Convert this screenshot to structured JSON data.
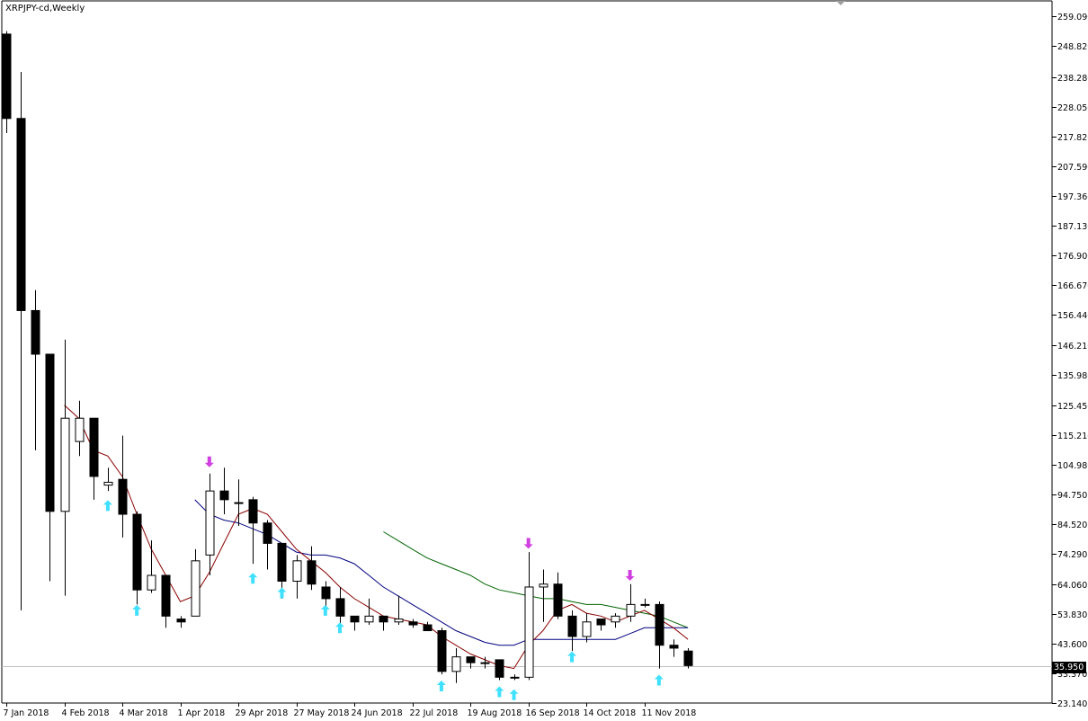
{
  "header": {
    "symbol_label": "XRPJPY-cd,Weekly"
  },
  "current_price_label": "35.950",
  "colors": {
    "background": "#ffffff",
    "candle": "#000000",
    "ma_fast": "#8b0000",
    "ma_mid": "#000080",
    "ma_slow": "#006400",
    "arrow_up": "#40e0ff",
    "arrow_down": "#d040e0",
    "price_line": "#c0c0c0"
  },
  "chart_data": {
    "type": "candlestick",
    "ylim": [
      23.14,
      264.4
    ],
    "y_ticks": [
      "259.090",
      "248.820",
      "238.280",
      "228.050",
      "217.820",
      "207.590",
      "197.360",
      "187.130",
      "176.900",
      "166.670",
      "156.440",
      "146.210",
      "135.980",
      "125.450",
      "115.210",
      "104.980",
      "94.750",
      "84.520",
      "74.290",
      "64.060",
      "53.830",
      "43.600",
      "33.370",
      "23.140"
    ],
    "x_labels": [
      "7 Jan 2018",
      "4 Feb 2018",
      "4 Mar 2018",
      "1 Apr 2018",
      "29 Apr 2018",
      "27 May 2018",
      "24 Jun 2018",
      "22 Jul 2018",
      "19 Aug 2018",
      "16 Sep 2018",
      "14 Oct 2018",
      "11 Nov 2018"
    ],
    "current_price": 35.95,
    "candles": [
      {
        "o": 253.0,
        "h": 254.0,
        "l": 219.0,
        "c": 224.0
      },
      {
        "o": 224.0,
        "h": 240.0,
        "l": 55.0,
        "c": 158.0
      },
      {
        "o": 158.0,
        "h": 165.0,
        "l": 110.0,
        "c": 143.0
      },
      {
        "o": 143.0,
        "h": 143.0,
        "l": 65.0,
        "c": 89.0
      },
      {
        "o": 89.0,
        "h": 148.0,
        "l": 60.0,
        "c": 121.0
      },
      {
        "o": 113.0,
        "h": 127.0,
        "l": 108.0,
        "c": 121.0
      },
      {
        "o": 121.0,
        "h": 121.0,
        "l": 93.0,
        "c": 101.0
      },
      {
        "o": 98.0,
        "h": 104.0,
        "l": 96.0,
        "c": 99.0
      },
      {
        "o": 100.0,
        "h": 115.0,
        "l": 80.0,
        "c": 88.0
      },
      {
        "o": 88.0,
        "h": 89.0,
        "l": 57.0,
        "c": 62.0
      },
      {
        "o": 62.0,
        "h": 79.0,
        "l": 61.0,
        "c": 67.0
      },
      {
        "o": 67.0,
        "h": 67.0,
        "l": 49.0,
        "c": 53.0
      },
      {
        "o": 52.0,
        "h": 53.0,
        "l": 49.0,
        "c": 51.0
      },
      {
        "o": 53.0,
        "h": 76.0,
        "l": 53.0,
        "c": 72.0
      },
      {
        "o": 74.0,
        "h": 102.0,
        "l": 67.0,
        "c": 96.0
      },
      {
        "o": 96.0,
        "h": 104.0,
        "l": 88.0,
        "c": 93.0
      },
      {
        "o": 92.0,
        "h": 100.0,
        "l": 84.0,
        "c": 92.0
      },
      {
        "o": 93.0,
        "h": 94.0,
        "l": 71.0,
        "c": 85.0
      },
      {
        "o": 85.0,
        "h": 86.0,
        "l": 69.0,
        "c": 78.0
      },
      {
        "o": 78.0,
        "h": 78.0,
        "l": 59.0,
        "c": 65.0
      },
      {
        "o": 65.0,
        "h": 74.0,
        "l": 59.0,
        "c": 72.0
      },
      {
        "o": 72.0,
        "h": 77.0,
        "l": 62.0,
        "c": 64.0
      },
      {
        "o": 63.0,
        "h": 65.0,
        "l": 55.0,
        "c": 59.0
      },
      {
        "o": 59.0,
        "h": 63.0,
        "l": 49.0,
        "c": 53.0
      },
      {
        "o": 53.0,
        "h": 53.0,
        "l": 48.0,
        "c": 51.0
      },
      {
        "o": 51.0,
        "h": 59.0,
        "l": 50.0,
        "c": 53.0
      },
      {
        "o": 53.0,
        "h": 53.0,
        "l": 48.0,
        "c": 51.0
      },
      {
        "o": 51.0,
        "h": 60.0,
        "l": 50.0,
        "c": 52.0
      },
      {
        "o": 51.0,
        "h": 52.0,
        "l": 49.0,
        "c": 50.0
      },
      {
        "o": 50.0,
        "h": 51.0,
        "l": 48.0,
        "c": 48.0
      },
      {
        "o": 48.0,
        "h": 49.0,
        "l": 33.0,
        "c": 34.0
      },
      {
        "o": 34.0,
        "h": 42.0,
        "l": 30.0,
        "c": 39.0
      },
      {
        "o": 39.0,
        "h": 39.0,
        "l": 35.0,
        "c": 37.0
      },
      {
        "o": 37.0,
        "h": 39.0,
        "l": 35.0,
        "c": 37.0
      },
      {
        "o": 38.0,
        "h": 38.0,
        "l": 31.0,
        "c": 32.0
      },
      {
        "o": 32.0,
        "h": 33.0,
        "l": 31.0,
        "c": 32.0
      },
      {
        "o": 32.0,
        "h": 75.0,
        "l": 31.0,
        "c": 63.0
      },
      {
        "o": 63.0,
        "h": 69.0,
        "l": 51.0,
        "c": 64.0
      },
      {
        "o": 64.0,
        "h": 68.0,
        "l": 52.0,
        "c": 53.0
      },
      {
        "o": 53.0,
        "h": 55.0,
        "l": 41.0,
        "c": 46.0
      },
      {
        "o": 46.0,
        "h": 54.0,
        "l": 44.0,
        "c": 51.0
      },
      {
        "o": 52.0,
        "h": 52.0,
        "l": 48.0,
        "c": 50.0
      },
      {
        "o": 51.0,
        "h": 54.0,
        "l": 49.0,
        "c": 53.0
      },
      {
        "o": 53.0,
        "h": 64.0,
        "l": 51.0,
        "c": 57.0
      },
      {
        "o": 57.0,
        "h": 59.0,
        "l": 56.0,
        "c": 57.0
      },
      {
        "o": 57.0,
        "h": 58.0,
        "l": 35.0,
        "c": 43.0
      },
      {
        "o": 43.0,
        "h": 45.0,
        "l": 39.0,
        "c": 42.0
      },
      {
        "o": 41.0,
        "h": 42.0,
        "l": 35.0,
        "c": 36.0
      }
    ],
    "ma_fast": [
      [
        4,
        125.5
      ],
      [
        5,
        121
      ],
      [
        6,
        110
      ],
      [
        7,
        108
      ],
      [
        8,
        101
      ],
      [
        9,
        88
      ],
      [
        10,
        76
      ],
      [
        11,
        67
      ],
      [
        12,
        58
      ],
      [
        13,
        60
      ],
      [
        14,
        68
      ],
      [
        15,
        78
      ],
      [
        16,
        88
      ],
      [
        17,
        90
      ],
      [
        18,
        88
      ],
      [
        19,
        82
      ],
      [
        20,
        76
      ],
      [
        21,
        72
      ],
      [
        22,
        68
      ],
      [
        23,
        63
      ],
      [
        24,
        59
      ],
      [
        25,
        56
      ],
      [
        26,
        53
      ],
      [
        27,
        52
      ],
      [
        28,
        51
      ],
      [
        29,
        50
      ],
      [
        30,
        46
      ],
      [
        31,
        43
      ],
      [
        32,
        40
      ],
      [
        33,
        38
      ],
      [
        34,
        36
      ],
      [
        35,
        35
      ],
      [
        36,
        43
      ],
      [
        37,
        48
      ],
      [
        38,
        55
      ],
      [
        39,
        57
      ],
      [
        40,
        54
      ],
      [
        41,
        53
      ],
      [
        42,
        51
      ],
      [
        43,
        53
      ],
      [
        44,
        55
      ],
      [
        45,
        52
      ],
      [
        46,
        49
      ],
      [
        47,
        45
      ]
    ],
    "ma_mid": [
      [
        13,
        93
      ],
      [
        14,
        88
      ],
      [
        15,
        86
      ],
      [
        16,
        85
      ],
      [
        17,
        83
      ],
      [
        18,
        81
      ],
      [
        19,
        78
      ],
      [
        20,
        75
      ],
      [
        21,
        74
      ],
      [
        22,
        74
      ],
      [
        23,
        73
      ],
      [
        24,
        71
      ],
      [
        25,
        67
      ],
      [
        26,
        63
      ],
      [
        27,
        60
      ],
      [
        28,
        57
      ],
      [
        29,
        54
      ],
      [
        30,
        51
      ],
      [
        31,
        48
      ],
      [
        32,
        46
      ],
      [
        33,
        44
      ],
      [
        34,
        43
      ],
      [
        35,
        43
      ],
      [
        36,
        45
      ],
      [
        37,
        45
      ],
      [
        38,
        45
      ],
      [
        39,
        45
      ],
      [
        40,
        45
      ],
      [
        41,
        45
      ],
      [
        42,
        45
      ],
      [
        43,
        47
      ],
      [
        44,
        49
      ],
      [
        45,
        49
      ],
      [
        46,
        49
      ],
      [
        47,
        49
      ]
    ],
    "ma_slow": [
      [
        26,
        82
      ],
      [
        27,
        79
      ],
      [
        28,
        76
      ],
      [
        29,
        73
      ],
      [
        30,
        71
      ],
      [
        31,
        69
      ],
      [
        32,
        67
      ],
      [
        33,
        64
      ],
      [
        34,
        62
      ],
      [
        35,
        61
      ],
      [
        36,
        60
      ],
      [
        37,
        59
      ],
      [
        38,
        59
      ],
      [
        39,
        58
      ],
      [
        40,
        57
      ],
      [
        41,
        57
      ],
      [
        42,
        56
      ],
      [
        43,
        55
      ],
      [
        44,
        54
      ],
      [
        45,
        53
      ],
      [
        46,
        51
      ],
      [
        47,
        49
      ]
    ],
    "arrows_up": [
      [
        7,
        91
      ],
      [
        9,
        55
      ],
      [
        17,
        66
      ],
      [
        19,
        61
      ],
      [
        22,
        55
      ],
      [
        23,
        49
      ],
      [
        30,
        29
      ],
      [
        34,
        27
      ],
      [
        35,
        26
      ],
      [
        39,
        39
      ],
      [
        45,
        31
      ]
    ],
    "arrows_down": [
      [
        14,
        106
      ],
      [
        36,
        78
      ],
      [
        43,
        67
      ]
    ]
  }
}
